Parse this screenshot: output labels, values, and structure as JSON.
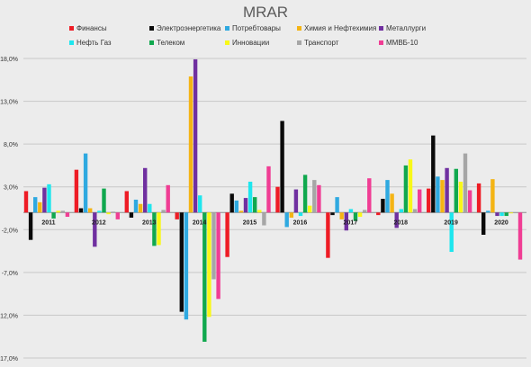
{
  "chart_data": {
    "type": "bar",
    "title": "MRAR",
    "xlabel": "",
    "ylabel": "",
    "categories": [
      "2011",
      "2012",
      "2013",
      "2014",
      "2015",
      "2016",
      "2017",
      "2018",
      "2019",
      "2020"
    ],
    "yticks": [
      "18,0%",
      "13,0%",
      "8,0%",
      "3,0%",
      "-2,0%",
      "-7,0%",
      "-12,0%",
      "-17,0%"
    ],
    "ytick_values": [
      18,
      13,
      8,
      3,
      -2,
      -7,
      -12,
      -17
    ],
    "ylim": [
      -17,
      18
    ],
    "grid": true,
    "legend_position": "top",
    "series": [
      {
        "name": "Финансы",
        "color": "#ee1c25",
        "values": [
          2.5,
          5.0,
          2.5,
          -0.8,
          -5.2,
          3.0,
          -5.3,
          -0.3,
          2.8,
          3.4
        ]
      },
      {
        "name": "Электроэнергетика",
        "color": "#0a0a0a",
        "values": [
          -3.2,
          0.5,
          -0.6,
          -11.6,
          2.2,
          10.7,
          -0.3,
          1.6,
          9.0,
          -2.6
        ]
      },
      {
        "name": "Потребтовары",
        "color": "#2fa9e0",
        "values": [
          1.8,
          6.9,
          1.5,
          -12.5,
          1.4,
          -1.7,
          1.8,
          3.8,
          4.2,
          0.2
        ]
      },
      {
        "name": "Химия и Нефтехимия",
        "color": "#f4b414",
        "values": [
          1.2,
          0.5,
          1.0,
          15.9,
          0.2,
          -0.6,
          -0.8,
          2.2,
          3.8,
          3.9
        ]
      },
      {
        "name": "Металлурги",
        "color": "#7030a0",
        "values": [
          2.9,
          -4.0,
          5.2,
          17.9,
          1.7,
          2.7,
          -2.1,
          -1.8,
          5.2,
          -0.4
        ]
      },
      {
        "name": "Нефть Газ",
        "color": "#1ee6ee",
        "values": [
          3.3,
          0.2,
          1.0,
          2.0,
          3.6,
          -0.4,
          0.4,
          0.4,
          -4.6,
          -0.4
        ]
      },
      {
        "name": "Телеком",
        "color": "#10a84e",
        "values": [
          -0.7,
          2.8,
          -3.9,
          -15.1,
          1.8,
          4.4,
          -1.0,
          5.5,
          5.1,
          -0.4
        ]
      },
      {
        "name": "Инновации",
        "color": "#f8f818",
        "values": [
          0.2,
          -0.2,
          -3.8,
          -12.2,
          0.3,
          0.8,
          -0.5,
          6.2,
          3.6,
          -0.1
        ]
      },
      {
        "name": "Транспорт",
        "color": "#a6a6a6",
        "values": [
          0.2,
          0.1,
          0.3,
          -7.8,
          -1.5,
          3.8,
          0.3,
          0.4,
          6.9,
          0.0
        ]
      },
      {
        "name": "ММВБ-10",
        "color": "#f03d94",
        "values": [
          -0.5,
          -0.8,
          3.2,
          -10.1,
          5.4,
          3.2,
          4.0,
          2.7,
          2.6,
          -5.5
        ]
      }
    ]
  }
}
